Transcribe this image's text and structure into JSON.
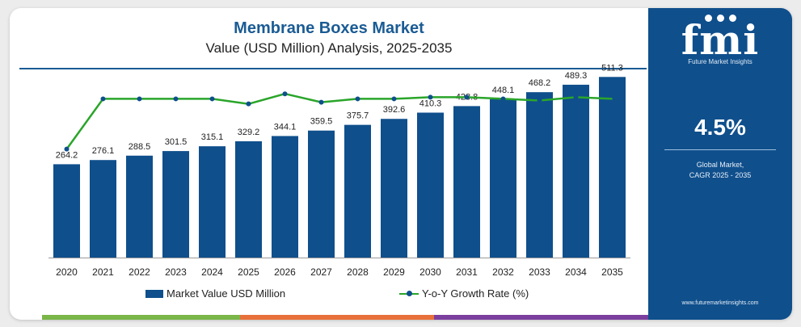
{
  "header": {
    "title": "Membrane Boxes Market",
    "subtitle": "Value (USD Million) Analysis, 2025-2035"
  },
  "sidepanel": {
    "logo": "fmi",
    "logo_sub": "Future Market Insights",
    "cagr_value": "4.5%",
    "cagr_label_1": "Global Market,",
    "cagr_label_2": "CAGR 2025 - 2035",
    "website": "www.futuremarketinsights.com"
  },
  "legend": {
    "bar_label": "Market Value USD Million",
    "line_label": "Y-o-Y Growth Rate (%)"
  },
  "colors": {
    "bar": "#0f4f8c",
    "line": "#2aa52a",
    "marker": "#0f4f8c",
    "title": "#1a5b94",
    "footer": [
      "#7ab648",
      "#e8703a",
      "#7b3f9e"
    ]
  },
  "chart_data": {
    "type": "bar",
    "title": "Membrane Boxes Market",
    "subtitle": "Value (USD Million) Analysis, 2025-2035",
    "categories": [
      "2020",
      "2021",
      "2022",
      "2023",
      "2024",
      "2025",
      "2026",
      "2027",
      "2028",
      "2029",
      "2030",
      "2031",
      "2032",
      "2033",
      "2034",
      "2035"
    ],
    "series": [
      {
        "name": "Market Value USD Million",
        "type": "bar",
        "values": [
          264.2,
          276.1,
          288.5,
          301.5,
          315.1,
          329.2,
          344.1,
          359.5,
          375.7,
          392.6,
          410.3,
          428.8,
          448.1,
          468.2,
          489.3,
          511.3
        ]
      },
      {
        "name": "Y-o-Y Growth Rate (%)",
        "type": "line",
        "values": [
          4.2,
          4.5,
          4.5,
          4.5,
          4.5,
          4.47,
          4.53,
          4.48,
          4.5,
          4.5,
          4.51,
          4.51,
          4.5,
          4.49,
          4.51,
          4.5
        ]
      }
    ],
    "ylim": [
      0,
      560
    ],
    "legend": "bottom",
    "grid": false
  }
}
